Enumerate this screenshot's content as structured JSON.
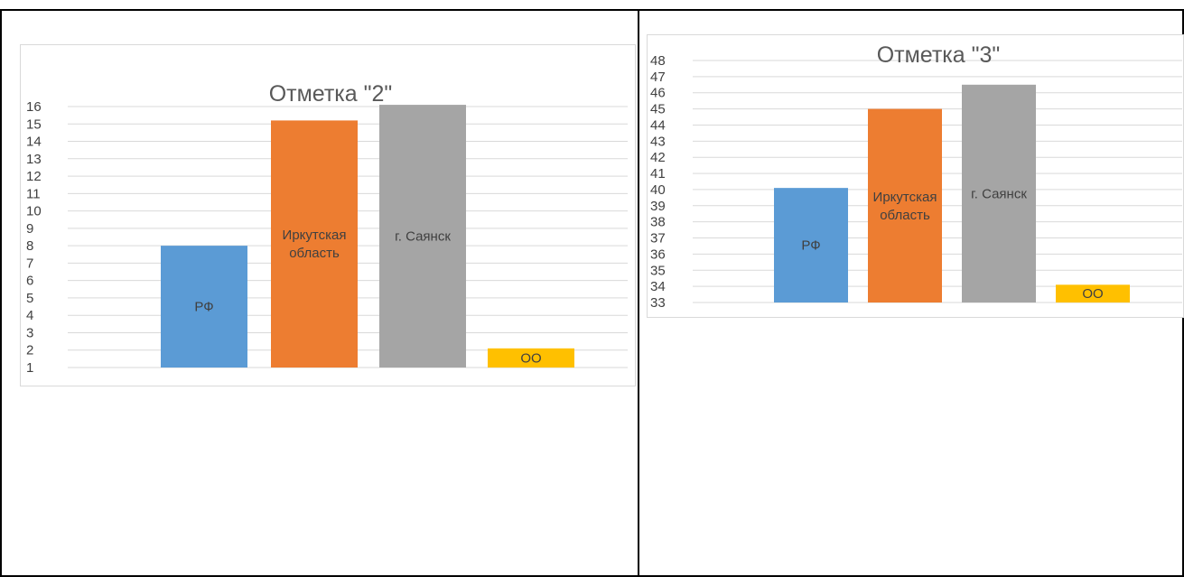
{
  "colors": {
    "blue": "#5b9bd5",
    "orange": "#ed7d31",
    "gray": "#a5a5a5",
    "yellow": "#ffc000",
    "grid": "#d9d9d9",
    "text": "#404040",
    "title": "#595959"
  },
  "chart_data": [
    {
      "type": "bar",
      "title": "Отметка \"2\"",
      "categories": [
        "РФ",
        "Иркутская область",
        "г. Саянск",
        "ОО"
      ],
      "values": [
        8,
        15.2,
        16.1,
        2.1
      ],
      "ylim": [
        1,
        16
      ],
      "yticks": [
        1,
        2,
        3,
        4,
        5,
        6,
        7,
        8,
        9,
        10,
        11,
        12,
        13,
        14,
        15,
        16
      ],
      "grid": true,
      "legend": "none",
      "bar_labels": [
        [
          "РФ"
        ],
        [
          "Иркутская",
          "область"
        ],
        [
          "г. Саянск"
        ],
        [
          "ОО"
        ]
      ],
      "bar_colors": [
        "#5b9bd5",
        "#ed7d31",
        "#a5a5a5",
        "#ffc000"
      ]
    },
    {
      "type": "bar",
      "title": "Отметка \"3\"",
      "categories": [
        "РФ",
        "Иркутская область",
        "г. Саянск",
        "ОО"
      ],
      "values": [
        40.1,
        45,
        46.5,
        34.1
      ],
      "ylim": [
        33,
        48
      ],
      "yticks": [
        33,
        34,
        35,
        36,
        37,
        38,
        39,
        40,
        41,
        42,
        43,
        44,
        45,
        46,
        47,
        48
      ],
      "grid": true,
      "legend": "none",
      "bar_labels": [
        [
          "РФ"
        ],
        [
          "Иркутская",
          "область"
        ],
        [
          "г. Саянск"
        ],
        [
          "ОО"
        ]
      ],
      "bar_colors": [
        "#5b9bd5",
        "#ed7d31",
        "#a5a5a5",
        "#ffc000"
      ]
    }
  ]
}
